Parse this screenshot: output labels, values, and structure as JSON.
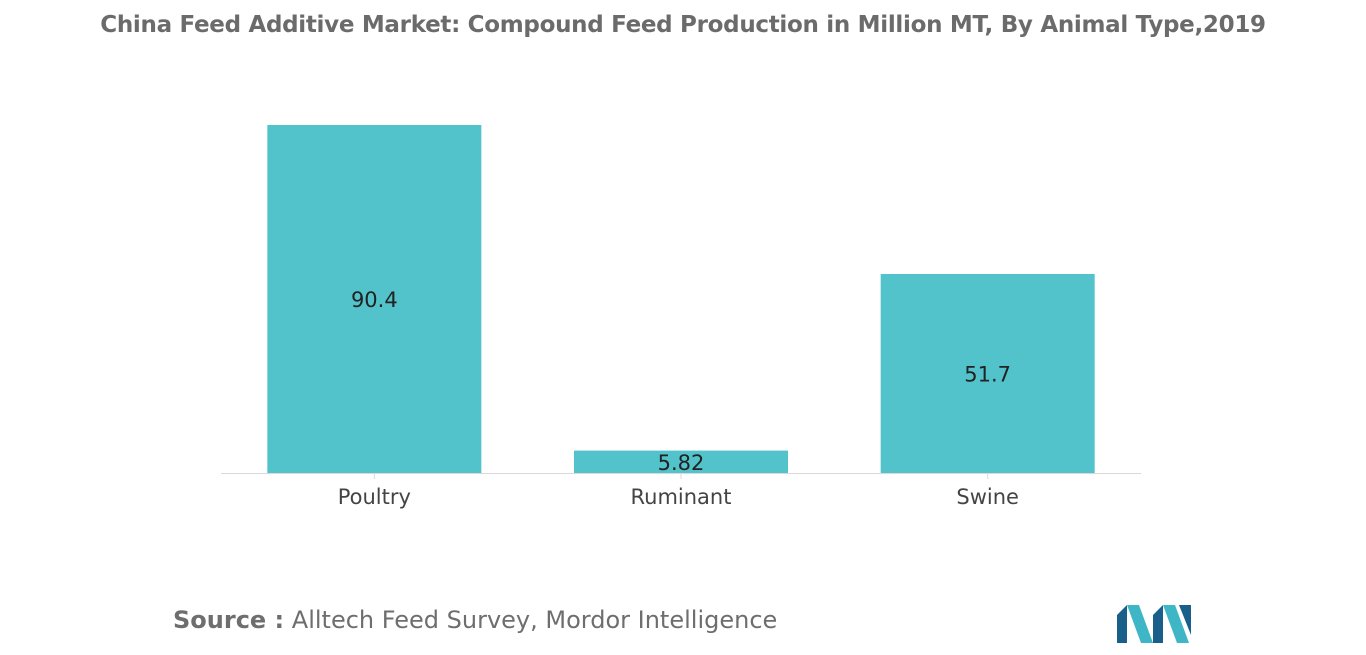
{
  "chart_data": {
    "type": "bar",
    "title": "China Feed Additive Market: Compound Feed Production in Million MT, By Animal Type,2019",
    "categories": [
      "Poultry",
      "Ruminant",
      "Swine"
    ],
    "values": [
      90.4,
      5.82,
      51.7
    ],
    "value_labels": [
      "90.4",
      "5.82",
      "51.7"
    ],
    "xlabel": "",
    "ylabel": "",
    "ylim": [
      0,
      90.4
    ],
    "grid": false,
    "legend": "none",
    "bar_color": "#52c3ca"
  },
  "source": {
    "label": "Source :",
    "text": "Alltech Feed Survey, Mordor Intelligence"
  },
  "logo": {
    "icon": "mordor-intelligence-logo",
    "colors": [
      "#1a5f8a",
      "#3fb6c6"
    ]
  }
}
